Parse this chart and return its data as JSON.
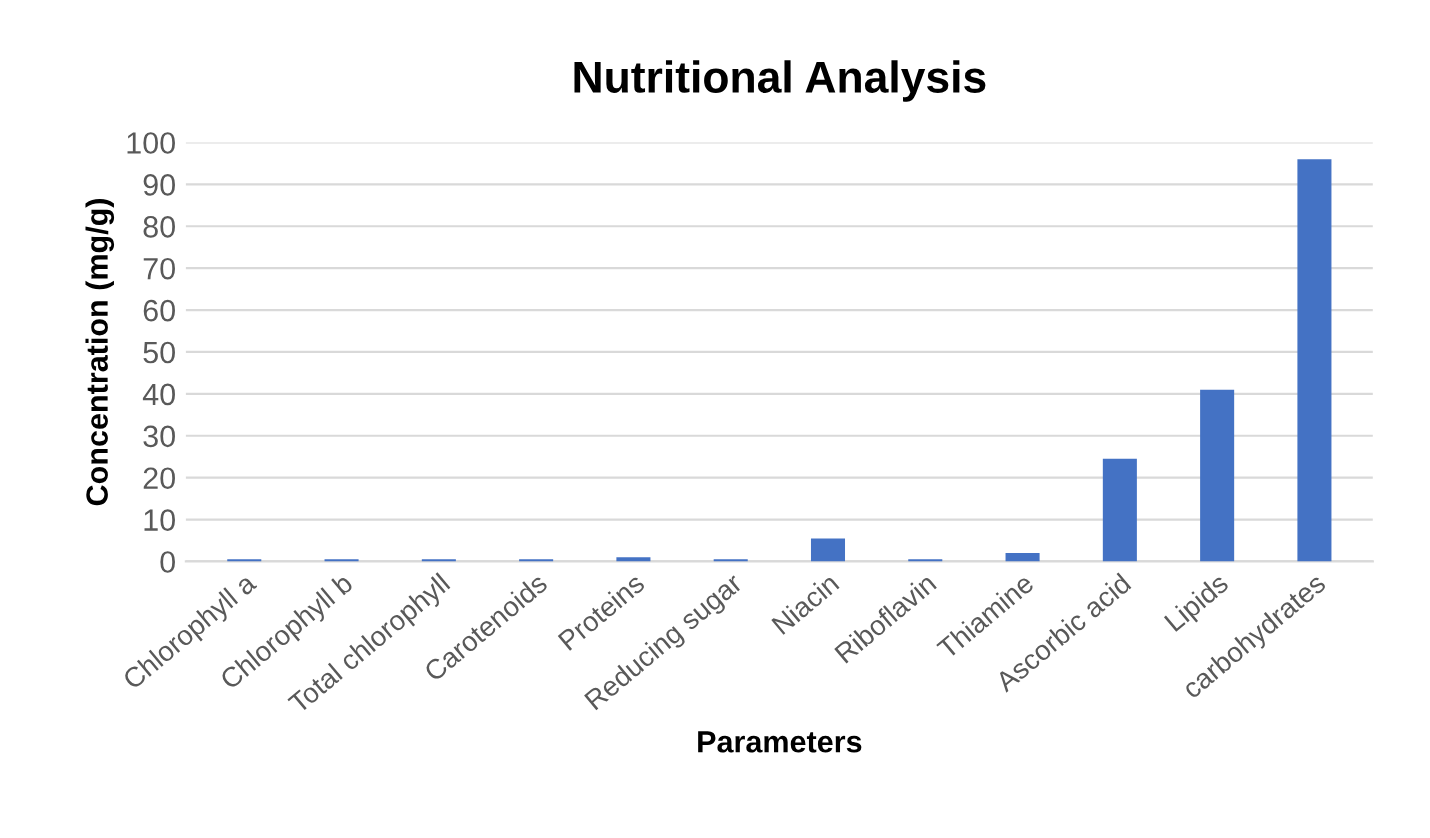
{
  "chart_data": {
    "type": "bar",
    "title": "Nutritional Analysis",
    "xlabel": "Parameters",
    "ylabel": "Concentration (mg/g)",
    "categories": [
      "Chlorophyll a",
      "Chlorophyll b",
      "Total chlorophyll",
      "Carotenoids",
      "Proteins",
      "Reducing sugar",
      "Niacin",
      "Riboflavin",
      "Thiamine",
      "Ascorbic acid",
      "Lipids",
      "carbohydrates"
    ],
    "values": [
      0.5,
      0.5,
      0.5,
      0.5,
      1,
      0.5,
      5.5,
      0.5,
      2,
      24.5,
      41,
      96
    ],
    "color": "#4472c4",
    "ylim": [
      0,
      100
    ],
    "yticks": [
      0,
      10,
      20,
      30,
      40,
      50,
      60,
      70,
      80,
      90,
      100
    ],
    "grid": "y",
    "legend": false
  }
}
